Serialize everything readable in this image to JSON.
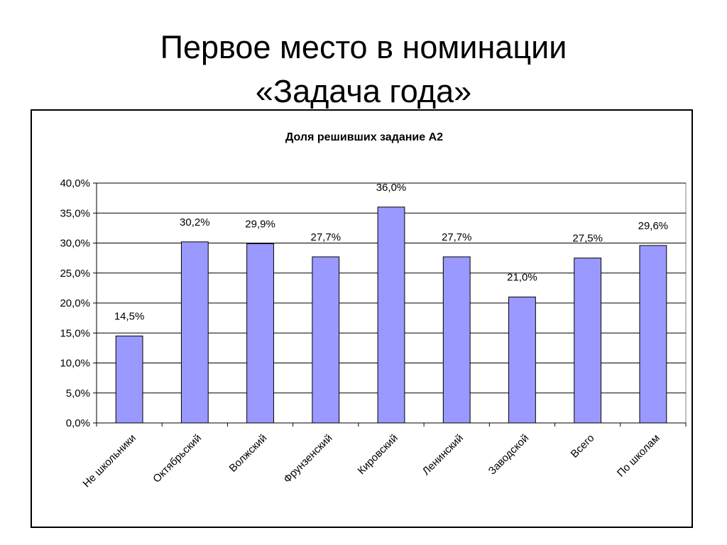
{
  "slide": {
    "title_line1": "Первое место в номинации",
    "title_line2": "«Задача года»"
  },
  "chart_data": {
    "type": "bar",
    "title": "Доля решивших задание А2",
    "xlabel": "",
    "ylabel": "",
    "categories": [
      "Не школьники",
      "Октябрьский",
      "Волжский",
      "Фрунзенский",
      "Кировский",
      "Ленинский",
      "Заводской",
      "Всего",
      "По школам"
    ],
    "values": [
      14.5,
      30.2,
      29.9,
      27.7,
      36.0,
      27.7,
      21.0,
      27.5,
      29.6
    ],
    "value_labels": [
      "14,5%",
      "30,2%",
      "29,9%",
      "27,7%",
      "36,0%",
      "27,7%",
      "21,0%",
      "27,5%",
      "29,6%"
    ],
    "ylim": [
      0,
      40
    ],
    "yticks": [
      0,
      5,
      10,
      15,
      20,
      25,
      30,
      35,
      40
    ],
    "ytick_labels": [
      "0,0%",
      "5,0%",
      "10,0%",
      "15,0%",
      "20,0%",
      "25,0%",
      "30,0%",
      "35,0%",
      "40,0%"
    ],
    "grid": true,
    "legend": "none",
    "bar_color": "#9999ff",
    "bar_edge_color": "#000000"
  }
}
